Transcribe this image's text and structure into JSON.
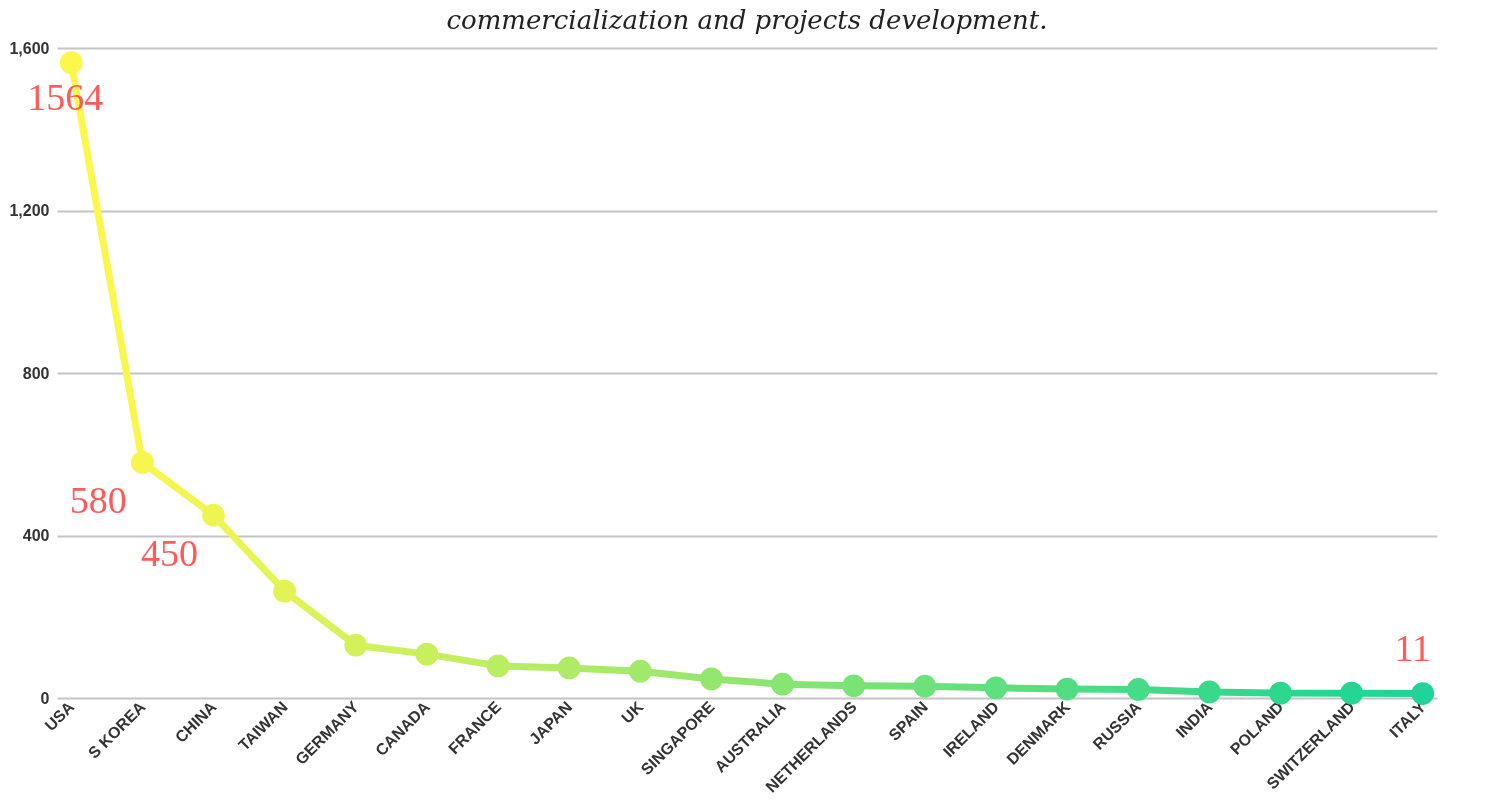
{
  "chart_data": {
    "type": "line",
    "title": "commercialization and projects development.",
    "categories": [
      "USA",
      "S KOREA",
      "CHINA",
      "TAIWAN",
      "GERMANY",
      "CANADA",
      "FRANCE",
      "JAPAN",
      "UK",
      "SINGAPORE",
      "AUSTRALIA",
      "NETHERLANDS",
      "SPAIN",
      "IRELAND",
      "DENMARK",
      "RUSSIA",
      "INDIA",
      "POLAND",
      "SWITZERLAND",
      "ITALY"
    ],
    "series": [
      {
        "values": [
          1564,
          580,
          450,
          263,
          130,
          108,
          79,
          74,
          66,
          47,
          34,
          30,
          29,
          25,
          22,
          21,
          15,
          12,
          12,
          11
        ],
        "colors": [
          "#fdf74b",
          "#f8f64e",
          "#eef552",
          "#e3f356",
          "#d5f15a",
          "#c8ef5e",
          "#bbed62",
          "#aeeb66",
          "#a1e96a",
          "#94e76e",
          "#87e572",
          "#7ae376",
          "#6de17a",
          "#60df7e",
          "#53dd82",
          "#46db86",
          "#39d98a",
          "#2cd78e",
          "#25d592",
          "#20d398"
        ],
        "value_labels": [
          "1564",
          "580",
          "450",
          null,
          null,
          null,
          null,
          null,
          null,
          null,
          null,
          null,
          null,
          null,
          null,
          null,
          null,
          null,
          null,
          "11"
        ]
      }
    ],
    "ylim": [
      0,
      1600
    ],
    "yticks": [
      0,
      {
        "value": 400,
        "label": "400"
      },
      {
        "value": 800,
        "label": "800"
      },
      {
        "value": 1200,
        "label": "1,200"
      },
      {
        "value": 1600,
        "label": "1,600"
      }
    ],
    "grid": "y",
    "marker": "circle",
    "line_style": "solid"
  }
}
